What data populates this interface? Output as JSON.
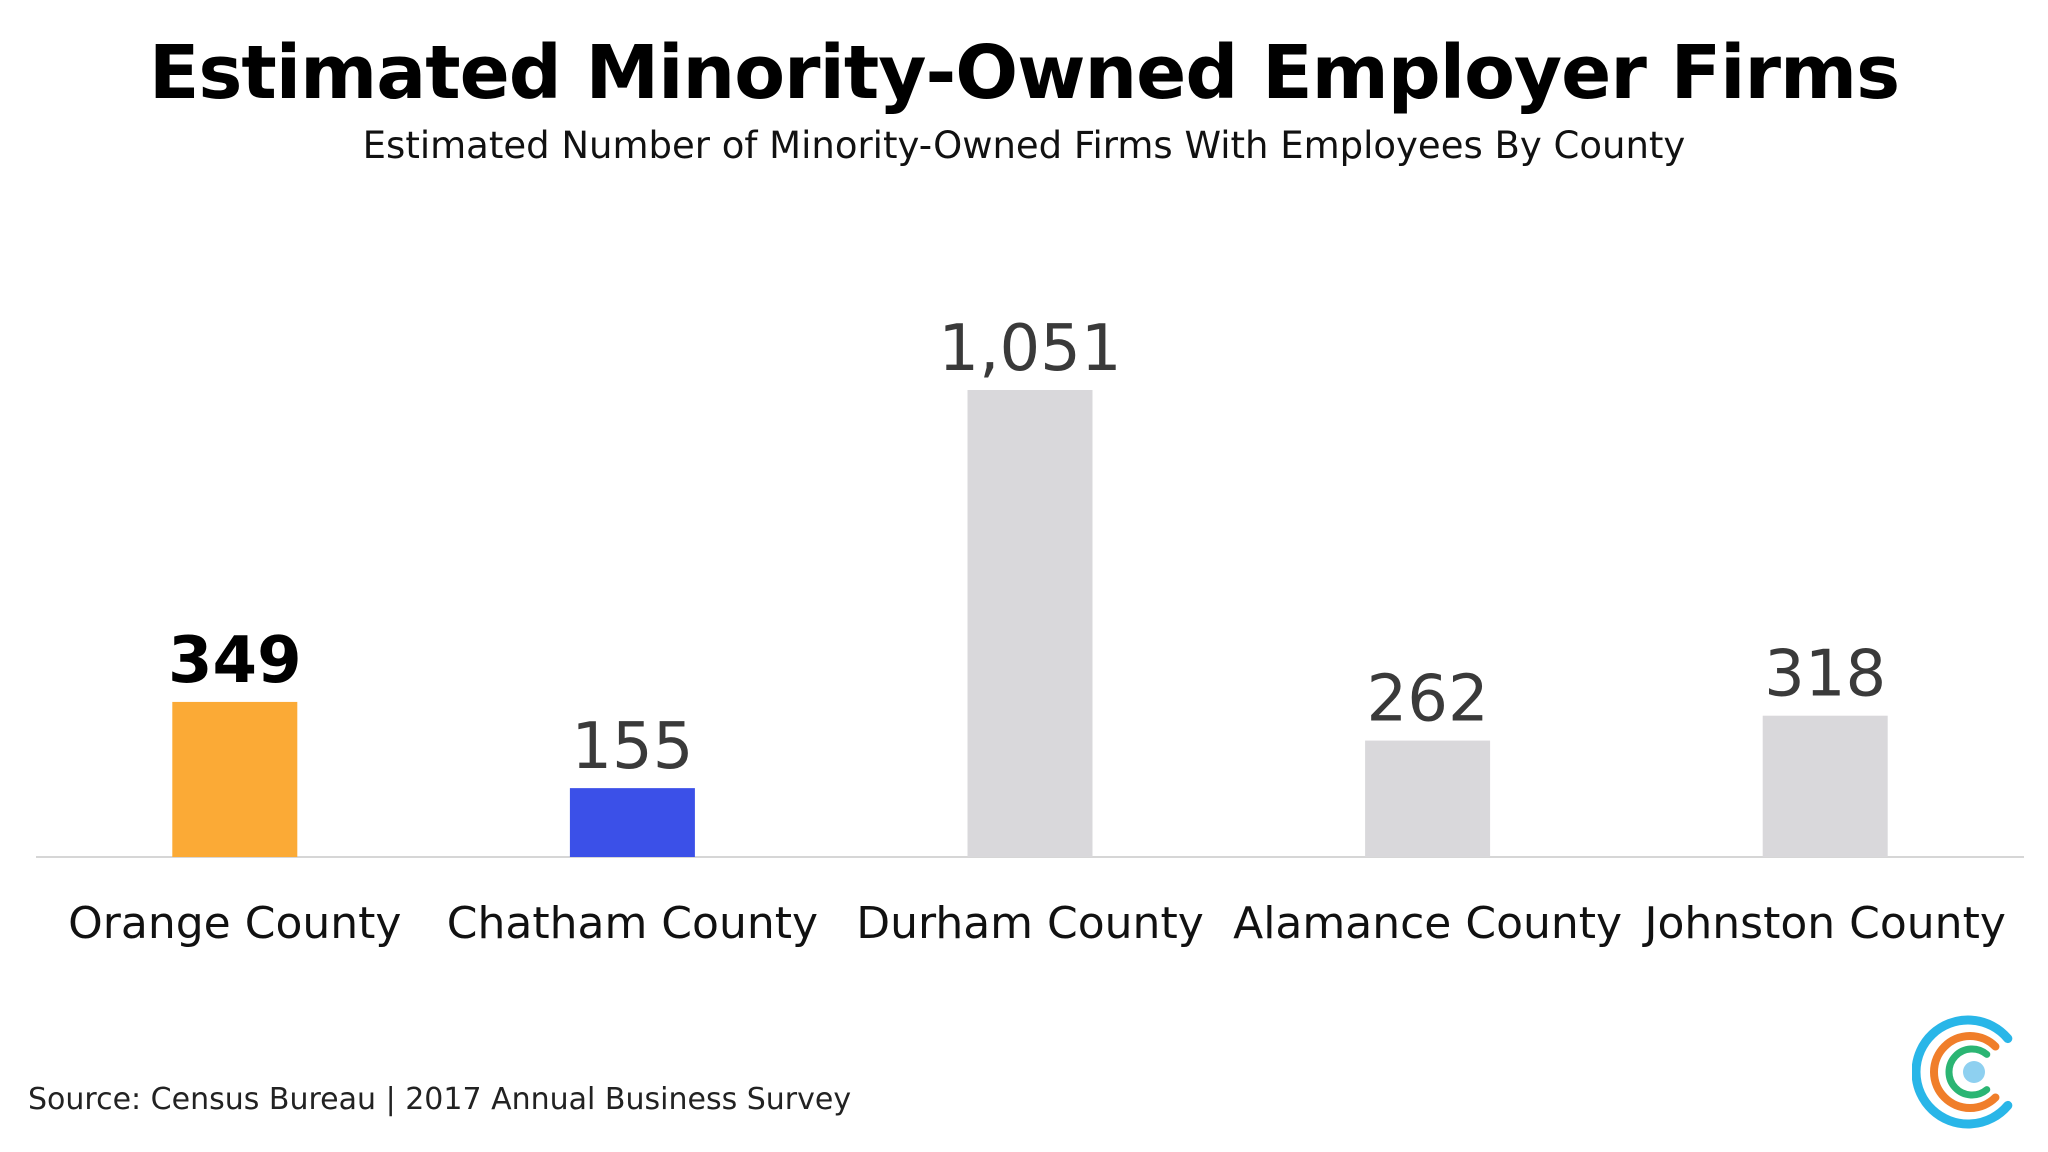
{
  "chart_data": {
    "type": "bar",
    "title": "Estimated Minority-Owned Employer Firms",
    "subtitle": "Estimated Number of Minority-Owned Firms With Employees By County",
    "categories": [
      "Orange County",
      "Chatham County",
      "Durham County",
      "Alamance County",
      "Johnston County"
    ],
    "values": [
      349,
      155,
      1051,
      262,
      318
    ],
    "value_labels": [
      "349",
      "155",
      "1,051",
      "262",
      "318"
    ],
    "colors": [
      "#FBAA36",
      "#3B50E8",
      "#D9D8DB",
      "#D9D8DB",
      "#D9D8DB"
    ],
    "highlight": "Orange County",
    "xlabel": "",
    "ylabel": "",
    "ylim": [
      0,
      1051
    ],
    "grid": false
  },
  "source": "Source: Census Bureau | 2017 Annual Business Survey",
  "logo": {
    "icon": "concentric-c-logo-icon",
    "colors": [
      "#29B6E8",
      "#F07E2A",
      "#2BB573",
      "#8ED0F0"
    ]
  }
}
